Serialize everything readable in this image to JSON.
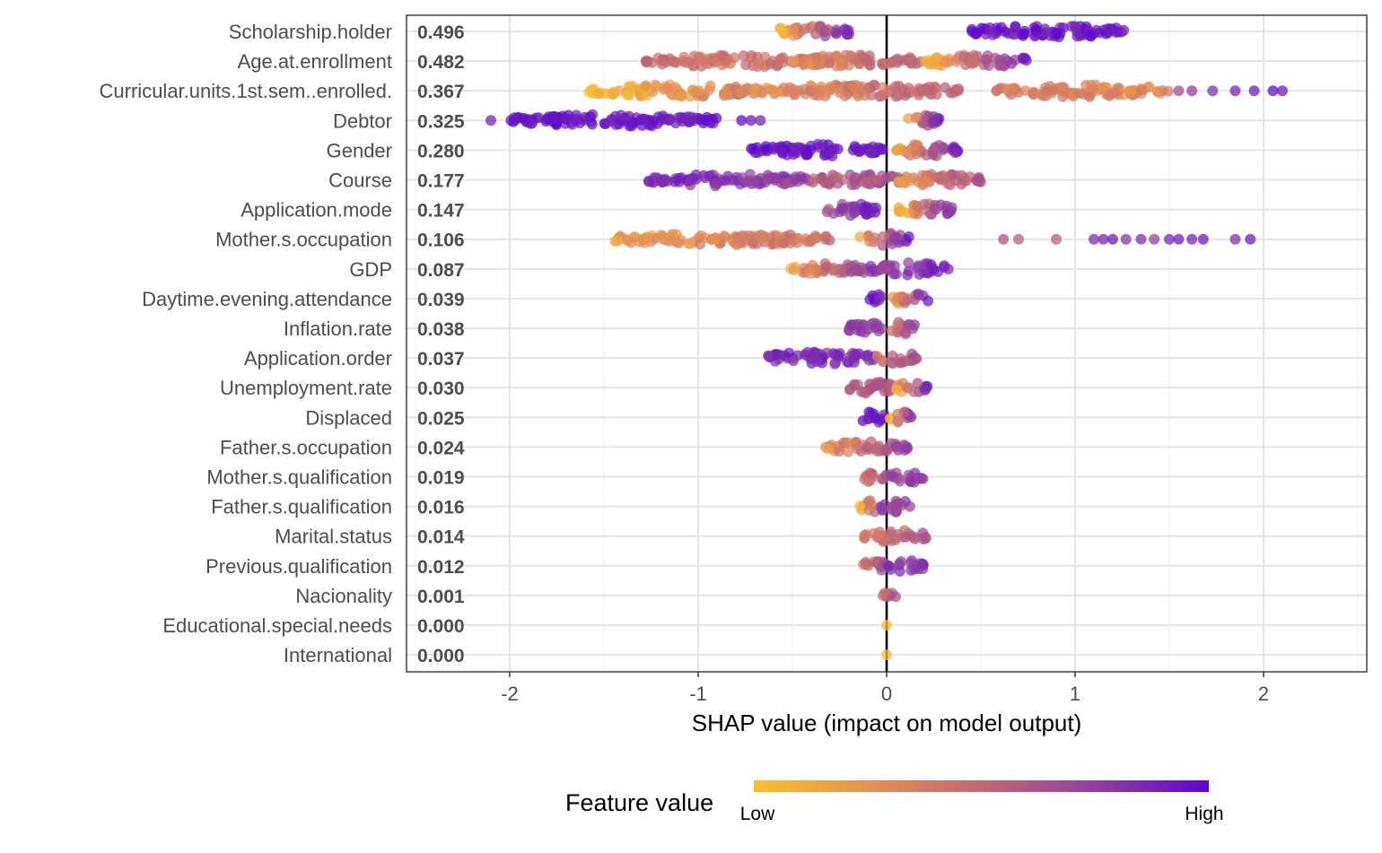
{
  "chart_data": {
    "type": "scatter",
    "subtype": "shap-beeswarm",
    "title": "",
    "xlabel": "SHAP value (impact on model output)",
    "ylabel": "",
    "xlim": [
      -2.55,
      2.55
    ],
    "xticks": [
      -2,
      -1,
      0,
      1,
      2
    ],
    "xtick_labels": [
      "-2",
      "-1",
      "0",
      "1",
      "2"
    ],
    "grid": true,
    "legend": {
      "position": "bottom",
      "title": "Feature value",
      "low_label": "Low",
      "high_label": "High",
      "colors": [
        "#FBC12C",
        "#E0875A",
        "#B8607A",
        "#8A3AA6",
        "#5C06D0"
      ]
    },
    "features": [
      {
        "name": "Scholarship.holder",
        "mean_abs_shap": "0.496",
        "segments": [
          [
            -0.58,
            -0.18,
            0.05,
            0.9
          ],
          [
            0.45,
            1.28,
            0.95,
            0.9
          ]
        ],
        "points": []
      },
      {
        "name": "Age.at.enrollment",
        "mean_abs_shap": "0.482",
        "segments": [
          [
            -1.28,
            -0.3,
            0.4,
            0.35
          ],
          [
            -0.5,
            0.2,
            0.25,
            0.5
          ],
          [
            0.2,
            0.75,
            0.03,
            0.9
          ]
        ],
        "points": []
      },
      {
        "name": "Curricular.units.1st.sem..enrolled.",
        "mean_abs_shap": "0.367",
        "segments": [
          [
            -1.58,
            -0.7,
            0.02,
            0.35
          ],
          [
            -0.7,
            0.4,
            0.2,
            0.5
          ],
          [
            0.58,
            1.5,
            0.3,
            0.25
          ]
        ],
        "points": [
          [
            1.55,
            0.6
          ],
          [
            1.62,
            0.7
          ],
          [
            1.73,
            0.8
          ],
          [
            1.85,
            0.85
          ],
          [
            1.95,
            0.9
          ],
          [
            2.05,
            0.95
          ],
          [
            2.1,
            0.9
          ]
        ]
      },
      {
        "name": "Debtor",
        "mean_abs_shap": "0.325",
        "segments": [
          [
            -2.0,
            -0.9,
            0.95,
            0.9
          ],
          [
            0.1,
            0.28,
            0.03,
            0.9
          ]
        ],
        "points": [
          [
            -2.1,
            0.85
          ],
          [
            -0.77,
            0.95
          ],
          [
            -0.72,
            0.9
          ],
          [
            -0.67,
            0.85
          ]
        ]
      },
      {
        "name": "Gender",
        "mean_abs_shap": "0.280",
        "segments": [
          [
            -0.72,
            -0.02,
            0.95,
            0.9
          ],
          [
            0.02,
            0.38,
            0.03,
            0.9
          ]
        ],
        "points": []
      },
      {
        "name": "Course",
        "mean_abs_shap": "0.177",
        "segments": [
          [
            -1.28,
            -0.4,
            0.85,
            0.7
          ],
          [
            -0.4,
            0.1,
            0.5,
            0.6
          ],
          [
            0.05,
            0.5,
            0.2,
            0.6
          ]
        ],
        "points": []
      },
      {
        "name": "Application.mode",
        "mean_abs_shap": "0.147",
        "segments": [
          [
            -0.32,
            -0.05,
            0.6,
            0.9
          ],
          [
            0.05,
            0.38,
            0.02,
            0.9
          ]
        ],
        "points": []
      },
      {
        "name": "Mother.s.occupation",
        "mean_abs_shap": "0.106",
        "segments": [
          [
            -1.45,
            -0.3,
            0.15,
            0.4
          ],
          [
            -0.15,
            0.12,
            0.15,
            0.9
          ]
        ],
        "points": [
          [
            0.62,
            0.55
          ],
          [
            0.7,
            0.5
          ],
          [
            0.9,
            0.5
          ],
          [
            1.1,
            0.8
          ],
          [
            1.15,
            0.85
          ],
          [
            1.2,
            0.9
          ],
          [
            1.27,
            0.75
          ],
          [
            1.35,
            0.8
          ],
          [
            1.42,
            0.7
          ],
          [
            1.5,
            0.85
          ],
          [
            1.55,
            0.9
          ],
          [
            1.62,
            0.85
          ],
          [
            1.68,
            0.9
          ],
          [
            1.85,
            0.8
          ],
          [
            1.93,
            0.9
          ]
        ]
      },
      {
        "name": "GDP",
        "mean_abs_shap": "0.087",
        "segments": [
          [
            -0.52,
            -0.05,
            0.12,
            0.8
          ],
          [
            -0.05,
            0.33,
            0.65,
            0.9
          ]
        ],
        "points": []
      },
      {
        "name": "Daytime.evening.attendance",
        "mean_abs_shap": "0.039",
        "segments": [
          [
            -0.1,
            -0.01,
            0.95,
            0.9
          ],
          [
            0.01,
            0.22,
            0.02,
            0.9
          ]
        ],
        "points": []
      },
      {
        "name": "Inflation.rate",
        "mean_abs_shap": "0.038",
        "segments": [
          [
            -0.22,
            0.0,
            0.75,
            0.7
          ],
          [
            0.0,
            0.16,
            0.25,
            0.7
          ]
        ],
        "points": []
      },
      {
        "name": "Application.order",
        "mean_abs_shap": "0.037",
        "segments": [
          [
            -0.65,
            -0.05,
            0.85,
            0.8
          ],
          [
            -0.05,
            0.16,
            0.35,
            0.6
          ]
        ],
        "points": []
      },
      {
        "name": "Unemployment.rate",
        "mean_abs_shap": "0.030",
        "segments": [
          [
            -0.22,
            0.05,
            0.5,
            0.6
          ],
          [
            0.05,
            0.22,
            0.05,
            0.9
          ]
        ],
        "points": []
      },
      {
        "name": "Displaced",
        "mean_abs_shap": "0.025",
        "segments": [
          [
            -0.14,
            -0.01,
            0.95,
            0.9
          ],
          [
            0.01,
            0.14,
            0.03,
            0.9
          ]
        ],
        "points": []
      },
      {
        "name": "Father.s.occupation",
        "mean_abs_shap": "0.024",
        "segments": [
          [
            -0.33,
            0.12,
            0.2,
            0.7
          ]
        ],
        "points": []
      },
      {
        "name": "Mother.s.qualification",
        "mean_abs_shap": "0.019",
        "segments": [
          [
            -0.13,
            0.02,
            0.35,
            0.6
          ],
          [
            0.02,
            0.2,
            0.7,
            0.7
          ]
        ],
        "points": []
      },
      {
        "name": "Father.s.qualification",
        "mean_abs_shap": "0.016",
        "segments": [
          [
            -0.15,
            0.0,
            0.05,
            0.9
          ],
          [
            0.0,
            0.14,
            0.7,
            0.7
          ]
        ],
        "points": []
      },
      {
        "name": "Marital.status",
        "mean_abs_shap": "0.014",
        "segments": [
          [
            -0.12,
            0.22,
            0.3,
            0.6
          ]
        ],
        "points": []
      },
      {
        "name": "Previous.qualification",
        "mean_abs_shap": "0.012",
        "segments": [
          [
            -0.17,
            0.0,
            0.25,
            0.6
          ],
          [
            0.0,
            0.2,
            0.75,
            0.8
          ]
        ],
        "points": []
      },
      {
        "name": "Nacionality",
        "mean_abs_shap": "0.001",
        "segments": [
          [
            -0.03,
            0.05,
            0.3,
            0.7
          ]
        ],
        "points": []
      },
      {
        "name": "Educational.special.needs",
        "mean_abs_shap": "0.000",
        "segments": [],
        "points": [
          [
            0.0,
            0.02
          ]
        ]
      },
      {
        "name": "International",
        "mean_abs_shap": "0.000",
        "segments": [],
        "points": [
          [
            0.0,
            0.02
          ]
        ]
      }
    ]
  }
}
